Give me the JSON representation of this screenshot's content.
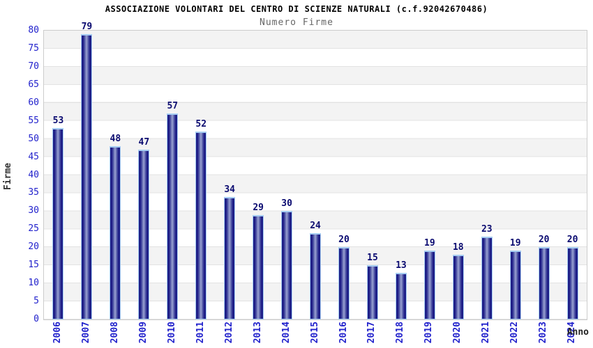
{
  "header": {
    "title": "ASSOCIAZIONE VOLONTARI DEL CENTRO DI SCIENZE NATURALI (c.f.92042670486)",
    "subtitle": "Numero Firme"
  },
  "chart_data": {
    "type": "bar",
    "title": "Numero Firme",
    "xlabel": "Anno",
    "ylabel": "Firme",
    "categories": [
      "2006",
      "2007",
      "2008",
      "2009",
      "2010",
      "2011",
      "2012",
      "2013",
      "2014",
      "2015",
      "2016",
      "2017",
      "2018",
      "2019",
      "2020",
      "2021",
      "2022",
      "2023",
      "2024"
    ],
    "values": [
      53,
      79,
      48,
      47,
      57,
      52,
      34,
      29,
      30,
      24,
      20,
      15,
      13,
      19,
      18,
      23,
      19,
      20,
      20
    ],
    "ylim": [
      0,
      80
    ],
    "ytick_step": 5,
    "grid": true,
    "legend": "none",
    "colors": {
      "bar_dark": "#191980",
      "bar_light": "#9ba3d3",
      "bar_border": "#a6cdf2",
      "tick_label": "#2222cc",
      "value_label": "#0a0a70",
      "band_gray": "#f3f3f3",
      "gridline": "#e3e3e3",
      "subtitle": "#666666"
    }
  }
}
